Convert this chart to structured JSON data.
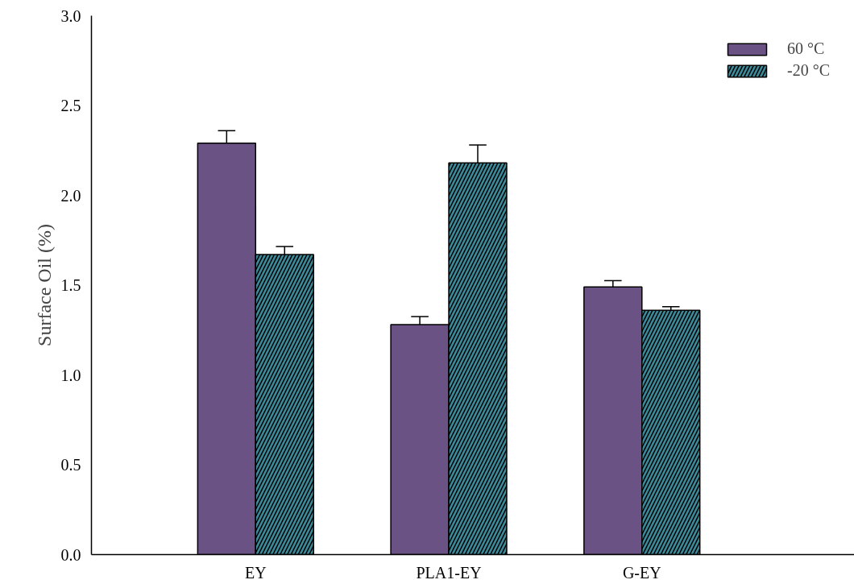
{
  "chart_data": {
    "type": "bar",
    "ylabel": "Surface Oil (%)",
    "categories": [
      "EY",
      "PLA1-EY",
      "G-EY"
    ],
    "series": [
      {
        "name": "60 °C",
        "color": "#6a5284",
        "values": [
          2.29,
          1.28,
          1.49
        ],
        "errors": [
          [
            2.29,
            2.36
          ],
          [
            1.28,
            1.325
          ],
          [
            1.49,
            1.525
          ]
        ]
      },
      {
        "name": "-20 °C",
        "color": "#3d8a9a",
        "values": [
          1.67,
          2.18,
          1.36
        ],
        "errors": [
          [
            1.67,
            1.715
          ],
          [
            2.18,
            2.28
          ],
          [
            1.36,
            1.38
          ]
        ]
      }
    ],
    "ylim": [
      0,
      3.0
    ],
    "yticks": [
      {
        "value": 0,
        "label": "0.0"
      },
      0.5,
      {
        "value": 1,
        "label": "1.0"
      },
      1.5,
      {
        "value": 2,
        "label": "2.0"
      },
      2.5,
      {
        "value": 3,
        "label": "3.0"
      }
    ],
    "grid": false,
    "legend": "top right"
  }
}
